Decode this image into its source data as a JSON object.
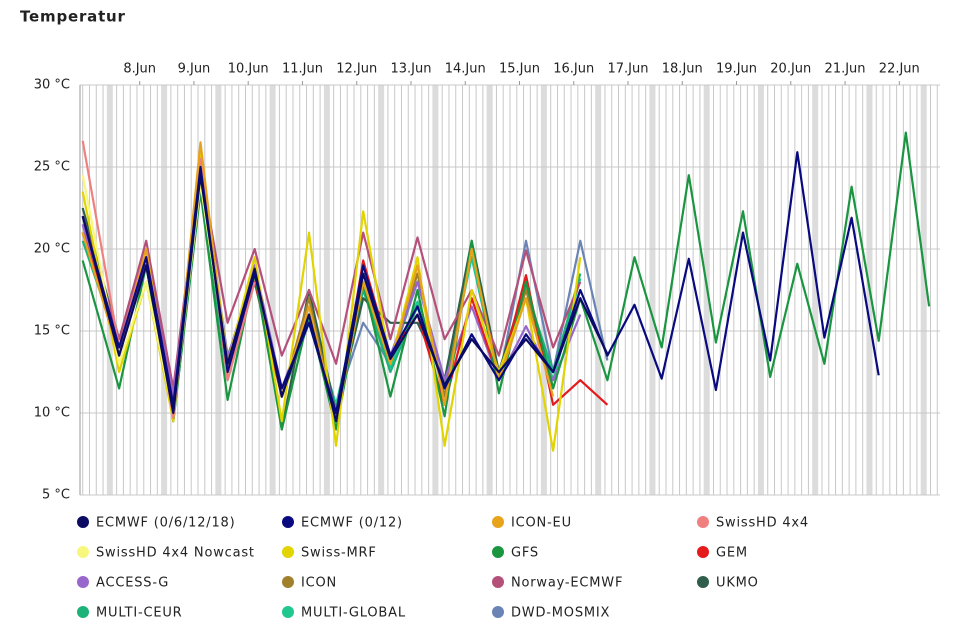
{
  "chart_data": {
    "type": "line",
    "title": "Temperatur",
    "x": [
      7.5,
      8.17,
      8.67,
      9.17,
      9.67,
      10.17,
      10.67,
      11.17,
      11.67,
      12.17,
      12.67,
      13.17,
      13.67,
      14.17,
      14.67,
      15.17,
      15.67,
      16.17,
      16.67,
      17.17,
      17.67,
      18.17,
      18.67,
      19.17,
      19.67,
      20.17,
      20.67,
      21.17,
      21.67,
      22.17,
      22.67,
      23.1
    ],
    "xlim": [
      7.45,
      23.3
    ],
    "xticks": [
      {
        "value": 8.55,
        "label": "8.Jun"
      },
      {
        "value": 9.55,
        "label": "9.Jun"
      },
      {
        "value": 10.55,
        "label": "10.Jun"
      },
      {
        "value": 11.55,
        "label": "11.Jun"
      },
      {
        "value": 12.55,
        "label": "12.Jun"
      },
      {
        "value": 13.55,
        "label": "13.Jun"
      },
      {
        "value": 14.55,
        "label": "14.Jun"
      },
      {
        "value": 15.55,
        "label": "15.Jun"
      },
      {
        "value": 16.55,
        "label": "16.Jun"
      },
      {
        "value": 17.55,
        "label": "17.Jun"
      },
      {
        "value": 18.55,
        "label": "18.Jun"
      },
      {
        "value": 19.55,
        "label": "19.Jun"
      },
      {
        "value": 20.55,
        "label": "20.Jun"
      },
      {
        "value": 21.55,
        "label": "21.Jun"
      },
      {
        "value": 22.55,
        "label": "22.Jun"
      }
    ],
    "ylim": [
      5,
      30
    ],
    "yticks": [
      {
        "value": 5,
        "label": "5 °C"
      },
      {
        "value": 10,
        "label": "10 °C"
      },
      {
        "value": 15,
        "label": "15 °C"
      },
      {
        "value": 20,
        "label": "20 °C"
      },
      {
        "value": 25,
        "label": "25 °C"
      },
      {
        "value": 30,
        "label": "30 °C"
      }
    ],
    "grid": true,
    "legend": "bottom",
    "series": [
      {
        "name": "ECMWF (0/6/12/18)",
        "color": "#0b0b63",
        "values": [
          22,
          13.5,
          19,
          10,
          24.5,
          13,
          18.8,
          11,
          16,
          9.5,
          18.5,
          13.3,
          16,
          11.7,
          14.5,
          12.5,
          14.5,
          12.5,
          17,
          13.6,
          null,
          null,
          null,
          null,
          null,
          null,
          null,
          null,
          null,
          null,
          null,
          null
        ]
      },
      {
        "name": "ECMWF (0/12)",
        "color": "#0a0a80",
        "values": [
          22,
          14,
          19.5,
          10.5,
          25,
          12.5,
          18.5,
          11.5,
          15.5,
          10,
          19,
          13.5,
          16.5,
          11.5,
          14.8,
          12,
          14.8,
          12.5,
          17.5,
          13.5,
          16.6,
          12.1,
          19.4,
          11.4,
          21,
          13.2,
          25.9,
          14.6,
          21.9,
          12.3,
          null,
          null
        ]
      },
      {
        "name": "ICON-EU",
        "color": "#e8a31c",
        "values": [
          21,
          13.5,
          20,
          10,
          26.5,
          12.5,
          18.8,
          11,
          16.5,
          9.5,
          18,
          13,
          19,
          10.5,
          20,
          12,
          17,
          11,
          null,
          null,
          null,
          null,
          null,
          null,
          null,
          null,
          null,
          null,
          null,
          null,
          null,
          null
        ]
      },
      {
        "name": "SwissHD 4x4",
        "color": "#f08080",
        "values": [
          26.6,
          14,
          20,
          9.7,
          25.5,
          12,
          18,
          null,
          null,
          null,
          null,
          null,
          null,
          null,
          null,
          null,
          null,
          null,
          null,
          null,
          null,
          null,
          null,
          null,
          null,
          null,
          null,
          null,
          null,
          null,
          null,
          null
        ]
      },
      {
        "name": "SwissHD 4x4 Nowcast",
        "color": "#f7f77e",
        "values": [
          24.5,
          13,
          18,
          10,
          24,
          13,
          null,
          null,
          null,
          null,
          null,
          null,
          null,
          null,
          null,
          null,
          null,
          null,
          null,
          null,
          null,
          null,
          null,
          null,
          null,
          null,
          null,
          null,
          null,
          null,
          null,
          null
        ]
      },
      {
        "name": "Swiss-MRF",
        "color": "#e2d400",
        "values": [
          23.5,
          12.5,
          18,
          9.5,
          26,
          13,
          19.5,
          9.5,
          21,
          8,
          22.3,
          13,
          19.5,
          8,
          17.5,
          12.5,
          17,
          7.7,
          19.5,
          null,
          null,
          null,
          null,
          null,
          null,
          null,
          null,
          null,
          null,
          null,
          null,
          null
        ]
      },
      {
        "name": "GFS",
        "color": "#1a9641",
        "values": [
          19.3,
          11.5,
          19,
          9.5,
          23.5,
          10.8,
          18.5,
          9,
          16,
          9,
          18,
          11,
          17.5,
          9.8,
          20.5,
          11.2,
          18,
          11.5,
          17,
          12,
          19.5,
          14,
          24.5,
          14.3,
          22.3,
          12.2,
          19.1,
          13,
          23.8,
          14.4,
          27.1,
          16.5
        ]
      },
      {
        "name": "GEM",
        "color": "#e41a1c",
        "values": [
          21,
          14,
          19.5,
          10,
          25.5,
          12.5,
          18,
          11,
          16,
          9.5,
          19.3,
          13.5,
          16,
          10.5,
          17,
          12,
          18.4,
          10.5,
          12,
          10.5,
          null,
          null,
          null,
          null,
          null,
          null,
          null,
          null,
          null,
          null,
          null,
          null
        ]
      },
      {
        "name": "ACCESS-G",
        "color": "#9966cc",
        "values": [
          21.5,
          13.5,
          19.5,
          11,
          25,
          13.3,
          19,
          11.5,
          16,
          10,
          18.5,
          13.5,
          18,
          12,
          16.5,
          12,
          15.3,
          12,
          16,
          null,
          null,
          null,
          null,
          null,
          null,
          null,
          null,
          null,
          null,
          null,
          null,
          null
        ]
      },
      {
        "name": "ICON",
        "color": "#a0802a",
        "values": [
          21,
          13.5,
          19,
          10,
          26,
          12.5,
          18.5,
          11,
          17,
          9.5,
          18,
          13,
          18.5,
          11,
          20,
          12,
          17.5,
          11.5,
          null,
          null,
          null,
          null,
          null,
          null,
          null,
          null,
          null,
          null,
          null,
          null,
          null,
          null
        ]
      },
      {
        "name": "Norway-ECMWF",
        "color": "#b5507a",
        "values": [
          22,
          14.5,
          20.5,
          11.5,
          25,
          15.5,
          20,
          13.5,
          17.5,
          13,
          21,
          14.5,
          20.7,
          14.5,
          17.5,
          13.5,
          19.9,
          14,
          18,
          null,
          null,
          null,
          null,
          null,
          null,
          null,
          null,
          null,
          null,
          null,
          null,
          null
        ]
      },
      {
        "name": "UKMO",
        "color": "#2f5f4a",
        "values": [
          22.5,
          14.5,
          19,
          9.5,
          25,
          13,
          19,
          9,
          17.5,
          10,
          17,
          15.5,
          15.5,
          12,
          20.5,
          12.5,
          18,
          11.5,
          null,
          null,
          null,
          null,
          null,
          null,
          null,
          null,
          null,
          null,
          null,
          null,
          null,
          null
        ]
      },
      {
        "name": "MULTI-CEUR",
        "color": "#1db27a",
        "values": [
          20.5,
          14,
          19,
          10,
          24,
          12,
          18,
          11,
          15.5,
          10,
          17.5,
          12.5,
          16.5,
          11.5,
          20,
          12.5,
          17.5,
          12.5,
          18.5,
          null,
          null,
          null,
          null,
          null,
          null,
          null,
          null,
          null,
          null,
          null,
          null,
          null
        ]
      },
      {
        "name": "MULTI-GLOBAL",
        "color": "#20c890",
        "values": [
          21,
          14,
          19.5,
          10.5,
          24.5,
          12.5,
          18.5,
          11,
          15.8,
          10.5,
          17.8,
          12.8,
          16.8,
          11.5,
          19.5,
          12,
          17.8,
          12,
          18.2,
          null,
          null,
          null,
          null,
          null,
          null,
          null,
          null,
          null,
          null,
          null,
          null,
          null
        ]
      },
      {
        "name": "DWD-MOSMIX",
        "color": "#6a84b5",
        "values": [
          21.5,
          14.5,
          20,
          11,
          25,
          13.5,
          18,
          11,
          16,
          10.5,
          15.5,
          13,
          18,
          12,
          19.5,
          12,
          20.5,
          12.5,
          20.5,
          13.2,
          null,
          null,
          null,
          null,
          null,
          null,
          null,
          null,
          null,
          null,
          null,
          null
        ]
      }
    ]
  }
}
